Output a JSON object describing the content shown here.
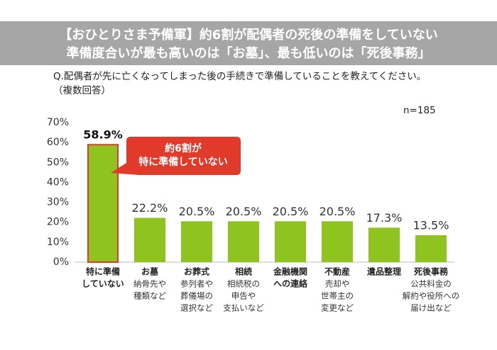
{
  "chart_data": {
    "type": "bar",
    "title": [
      "【おひとりさま予備軍】約6割が配偶者の死後の準備をしていない",
      "準備度合いが最も高いのは「お墓」、最も低いのは「死後事務」"
    ],
    "subtitle": [
      "Q.配偶者が先に亡くなってしまった後の手続きで準備していることを教えてください。",
      "（複数回答）"
    ],
    "sample_size": "n=185",
    "categories": [
      [
        "特に準備",
        "していない"
      ],
      [
        "お墓"
      ],
      [
        "お葬式"
      ],
      [
        "相続"
      ],
      [
        "金融機関",
        "への連絡"
      ],
      [
        "不動産"
      ],
      [
        "遺品整理"
      ],
      [
        "死後事務"
      ]
    ],
    "category_notes": [
      [],
      [
        "納骨先や",
        "種類など"
      ],
      [
        "参列者や",
        "葬儀場の",
        "選択など"
      ],
      [
        "相続税の",
        "申告や",
        "支払いなど"
      ],
      [],
      [
        "売却や",
        "世帯主の",
        "変更など"
      ],
      [],
      [
        "公共料金の",
        "解約や役所への",
        "届け出など"
      ]
    ],
    "values": [
      58.9,
      22.2,
      20.5,
      20.5,
      20.5,
      20.5,
      17.3,
      13.5
    ],
    "value_labels": [
      "58.9%",
      "22.2%",
      "20.5%",
      "20.5%",
      "20.5%",
      "20.5%",
      "17.3%",
      "13.5%"
    ],
    "color": "#8fc31f",
    "highlight_color": "#e23a2a",
    "annotation": [
      "約6割が",
      "特に準備していない"
    ],
    "ylim": [
      0,
      70
    ],
    "yticks": [
      {
        "value": 0,
        "label": "0%"
      },
      {
        "value": 10,
        "label": "10%"
      },
      {
        "value": 20,
        "label": "20%"
      },
      {
        "value": 30,
        "label": "30%"
      },
      {
        "value": 40,
        "label": "40%"
      },
      {
        "value": 50,
        "label": "50%"
      },
      {
        "value": 60,
        "label": "60%"
      },
      {
        "value": 70,
        "label": "70%"
      }
    ],
    "grid": false
  }
}
